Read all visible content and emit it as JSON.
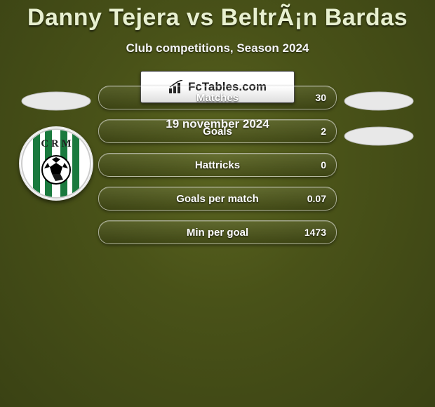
{
  "title": "Danny Tejera vs BeltrÃ¡n Bardas",
  "subtitle": "Club competitions, Season 2024",
  "date": "19 november 2024",
  "brand": "FcTables.com",
  "colors": {
    "background_center": "#5a6420",
    "background_outer": "#3a4214",
    "pill_border": "rgba(255,255,255,0.55)",
    "ellipse_fill": "#e8e8e8",
    "crm_stripe": "#1a7a3e"
  },
  "left_ellipses": [
    true
  ],
  "right_ellipses": [
    true,
    true
  ],
  "crm_badge_text": "C R M",
  "stats": [
    {
      "label": "Matches",
      "value": "30"
    },
    {
      "label": "Goals",
      "value": "2"
    },
    {
      "label": "Hattricks",
      "value": "0"
    },
    {
      "label": "Goals per match",
      "value": "0.07"
    },
    {
      "label": "Min per goal",
      "value": "1473"
    }
  ]
}
